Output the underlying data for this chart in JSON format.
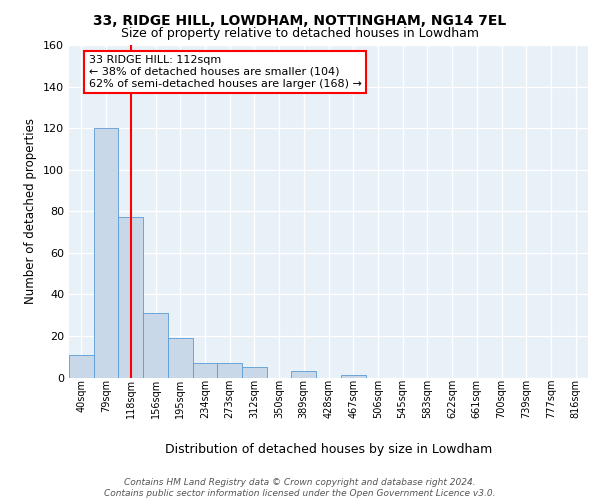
{
  "title1": "33, RIDGE HILL, LOWDHAM, NOTTINGHAM, NG14 7EL",
  "title2": "Size of property relative to detached houses in Lowdham",
  "xlabel": "Distribution of detached houses by size in Lowdham",
  "ylabel": "Number of detached properties",
  "bin_labels": [
    "40sqm",
    "79sqm",
    "118sqm",
    "156sqm",
    "195sqm",
    "234sqm",
    "273sqm",
    "312sqm",
    "350sqm",
    "389sqm",
    "428sqm",
    "467sqm",
    "506sqm",
    "545sqm",
    "583sqm",
    "622sqm",
    "661sqm",
    "700sqm",
    "739sqm",
    "777sqm",
    "816sqm"
  ],
  "bar_heights": [
    11,
    120,
    77,
    31,
    19,
    7,
    7,
    5,
    0,
    3,
    0,
    1,
    0,
    0,
    0,
    0,
    0,
    0,
    0,
    0,
    0
  ],
  "bar_color": "#c8d8e8",
  "bar_edge_color": "#5b9bd5",
  "red_line_x": 2,
  "ylim": [
    0,
    160
  ],
  "yticks": [
    0,
    20,
    40,
    60,
    80,
    100,
    120,
    140,
    160
  ],
  "annotation_text": "33 RIDGE HILL: 112sqm\n← 38% of detached houses are smaller (104)\n62% of semi-detached houses are larger (168) →",
  "annotation_box_color": "white",
  "annotation_box_edge": "red",
  "footer": "Contains HM Land Registry data © Crown copyright and database right 2024.\nContains public sector information licensed under the Open Government Licence v3.0.",
  "plot_bg_color": "#e8f0f8",
  "grid_color": "white"
}
